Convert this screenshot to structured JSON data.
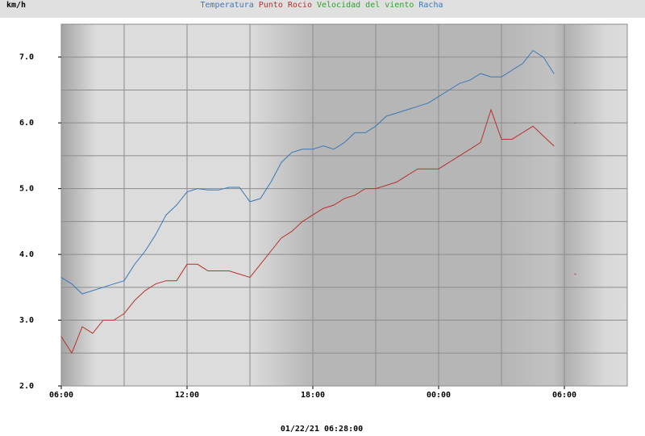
{
  "chart_data": {
    "type": "line",
    "y_label": "km/h",
    "footer": "01/22/21 06:28:00",
    "x": [
      0,
      0.5,
      1,
      1.5,
      2,
      2.5,
      3,
      3.5,
      4,
      4.5,
      5,
      5.5,
      6,
      6.5,
      7,
      7.5,
      8,
      8.5,
      9,
      9.5,
      10,
      10.5,
      11,
      11.5,
      12,
      12.5,
      13,
      13.5,
      14,
      14.5,
      15,
      15.5,
      16,
      16.5,
      17,
      17.5,
      18,
      18.5,
      19,
      19.5,
      20,
      20.5,
      21,
      21.5,
      22,
      22.5,
      23,
      23.5,
      24,
      24.5
    ],
    "series": [
      {
        "name": "Temperatura",
        "color": "#3a78b8",
        "values": [
          3.65,
          3.55,
          3.4,
          3.45,
          3.5,
          3.55,
          3.6,
          3.85,
          4.05,
          4.3,
          4.6,
          4.75,
          4.95,
          5.0,
          4.98,
          4.98,
          5.02,
          5.02,
          4.8,
          4.85,
          5.1,
          5.4,
          5.55,
          5.6,
          5.6,
          5.65,
          5.6,
          5.7,
          5.85,
          5.85,
          5.95,
          6.1,
          6.15,
          6.2,
          6.25,
          6.3,
          6.4,
          6.5,
          6.6,
          6.65,
          6.75,
          6.7,
          6.7,
          6.8,
          6.9,
          7.1,
          7.0,
          6.75,
          null,
          6.0
        ]
      },
      {
        "name": "Punto Rocio",
        "color": "#b83030",
        "values": [
          2.75,
          2.5,
          2.9,
          2.8,
          3.0,
          3.0,
          3.1,
          3.3,
          3.45,
          3.55,
          3.6,
          3.6,
          3.85,
          3.85,
          3.75,
          3.75,
          3.75,
          3.7,
          3.65,
          3.85,
          4.05,
          4.25,
          4.35,
          4.5,
          4.6,
          4.7,
          4.75,
          4.85,
          4.9,
          5.0,
          5.0,
          5.05,
          5.1,
          5.2,
          5.3,
          5.3,
          5.3,
          5.4,
          5.5,
          5.6,
          5.7,
          6.2,
          5.75,
          5.75,
          5.85,
          5.95,
          5.8,
          5.65,
          null,
          3.7
        ]
      },
      {
        "name": "Velocidad del viento",
        "color": "#30a030",
        "values": [
          null,
          null,
          null,
          null,
          null,
          null,
          null,
          null,
          null,
          null,
          null,
          null,
          null,
          null,
          null,
          null,
          null,
          null,
          null,
          null,
          null,
          null,
          null,
          null,
          null,
          null,
          null,
          null,
          null,
          null,
          null,
          null,
          null,
          null,
          null,
          null,
          null,
          null,
          null,
          null,
          null,
          null,
          null,
          null,
          null,
          null,
          null,
          null,
          null,
          null
        ]
      },
      {
        "name": "Racha",
        "color": "#3a78b8",
        "values": [
          null,
          null,
          null,
          null,
          null,
          null,
          null,
          null,
          null,
          null,
          null,
          null,
          null,
          null,
          null,
          null,
          null,
          null,
          null,
          null,
          null,
          null,
          null,
          null,
          null,
          null,
          null,
          null,
          null,
          null,
          null,
          null,
          null,
          null,
          null,
          null,
          null,
          null,
          null,
          null,
          null,
          null,
          null,
          null,
          null,
          null,
          null,
          null,
          null,
          null
        ]
      }
    ],
    "xlim": [
      0,
      27
    ],
    "xticks": [
      {
        "value": 0,
        "label": "06:00"
      },
      {
        "value": 6,
        "label": "12:00"
      },
      {
        "value": 12,
        "label": "18:00"
      },
      {
        "value": 18,
        "label": "00:00"
      },
      {
        "value": 24,
        "label": "06:00"
      }
    ],
    "xminor": [
      3,
      9,
      15,
      21
    ],
    "ylim": [
      2,
      7.5
    ],
    "yticks": [
      {
        "value": 2,
        "label": "2.0"
      },
      {
        "value": 3,
        "label": "3.0"
      },
      {
        "value": 4,
        "label": "4.0"
      },
      {
        "value": 5,
        "label": "5.0"
      },
      {
        "value": 6,
        "label": "6.0"
      },
      {
        "value": 7,
        "label": "7.0"
      }
    ],
    "yminor": [
      2.5,
      3.5,
      4.5,
      5.5,
      6.5
    ],
    "grid": true
  }
}
